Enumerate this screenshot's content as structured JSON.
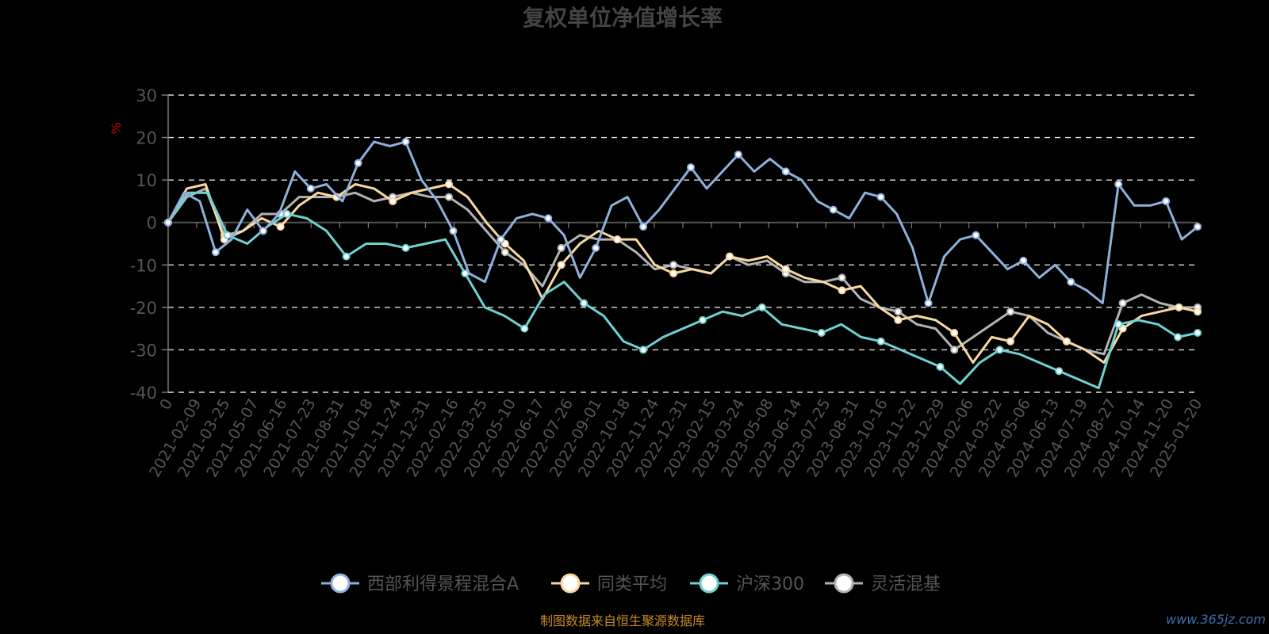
{
  "chart_data": {
    "type": "line",
    "title": "复权单位净值增长率",
    "ylabel": "%",
    "ylim": [
      -40,
      30
    ],
    "yticks": [
      30,
      20,
      10,
      0,
      -10,
      -20,
      -30,
      -40
    ],
    "xlabels": [
      "0",
      "2021-02-09",
      "2021-03-25",
      "2021-05-07",
      "2021-06-16",
      "2021-07-23",
      "2021-08-31",
      "2021-10-18",
      "2021-11-24",
      "2021-12-31",
      "2022-02-16",
      "2022-03-25",
      "2022-05-10",
      "2022-06-17",
      "2022-07-26",
      "2022-09-01",
      "2022-10-18",
      "2022-11-24",
      "2022-12-31",
      "2023-02-15",
      "2023-03-24",
      "2023-05-08",
      "2023-06-14",
      "2023-07-25",
      "2023-08-31",
      "2023-10-16",
      "2023-11-22",
      "2023-12-29",
      "2024-02-06",
      "2024-03-22",
      "2024-05-06",
      "2024-06-13",
      "2024-07-19",
      "2024-08-27",
      "2024-10-14",
      "2024-11-20",
      "2025-01-20"
    ],
    "grid": true,
    "legend_position": "bottom",
    "series": [
      {
        "name": "西部利得景程混合A",
        "color": "#8fb0dc",
        "values": [
          0,
          7,
          5,
          -7,
          -4,
          3,
          -2,
          2,
          12,
          8,
          9,
          5,
          14,
          19,
          18,
          19,
          10,
          5,
          -2,
          -12,
          -14,
          -4,
          1,
          2,
          1,
          -3,
          -13,
          -6,
          4,
          6,
          -1,
          3,
          8,
          13,
          8,
          12,
          16,
          12,
          15,
          12,
          10,
          5,
          3,
          1,
          7,
          6,
          2,
          -6,
          -19,
          -8,
          -4,
          -3,
          -7,
          -11,
          -9,
          -13,
          -10,
          -14,
          -16,
          -19,
          9,
          4,
          4,
          5,
          -4,
          -1
        ]
      },
      {
        "name": "同类平均",
        "color": "#f9d7a0",
        "values": [
          0,
          8,
          9,
          -4,
          -2,
          1,
          -1,
          4,
          7,
          6,
          9,
          8,
          5,
          7,
          8,
          9,
          6,
          0,
          -5,
          -9,
          -18,
          -10,
          -5,
          -2,
          -4,
          -4,
          -10,
          -12,
          -11,
          -12,
          -8,
          -9,
          -8,
          -11,
          -13,
          -14,
          -16,
          -15,
          -20,
          -23,
          -22,
          -23,
          -26,
          -33,
          -27,
          -28,
          -22,
          -24,
          -28,
          -30,
          -33,
          -25,
          -22,
          -21,
          -20,
          -21
        ]
      },
      {
        "name": "沪深300",
        "color": "#6fd1d1",
        "values": [
          0,
          7,
          7,
          -3,
          -5,
          -1,
          2,
          1,
          -2,
          -8,
          -5,
          -5,
          -6,
          -5,
          -4,
          -12,
          -20,
          -22,
          -25,
          -17,
          -14,
          -19,
          -22,
          -28,
          -30,
          -27,
          -25,
          -23,
          -21,
          -22,
          -20,
          -24,
          -25,
          -26,
          -24,
          -27,
          -28,
          -30,
          -32,
          -34,
          -38,
          -33,
          -30,
          -31,
          -33,
          -35,
          -37,
          -39,
          -24,
          -23,
          -24,
          -27,
          -26
        ]
      },
      {
        "name": "灵活混基",
        "color": "#b3b3b3",
        "values": [
          0,
          6,
          8,
          -3,
          -2,
          2,
          2,
          6,
          6,
          6,
          7,
          5,
          6,
          7,
          6,
          6,
          3,
          -2,
          -7,
          -10,
          -15,
          -6,
          -3,
          -4,
          -4,
          -7,
          -11,
          -10,
          -11,
          -12,
          -8,
          -10,
          -9,
          -12,
          -14,
          -14,
          -13,
          -18,
          -20,
          -21,
          -24,
          -25,
          -30,
          -27,
          -24,
          -21,
          -22,
          -26,
          -28,
          -30,
          -31,
          -19,
          -17,
          -19,
          -20,
          -20
        ]
      }
    ]
  },
  "footer": {
    "source": "制图数据来自恒生聚源数据库",
    "watermark": "www.365jz.com"
  }
}
